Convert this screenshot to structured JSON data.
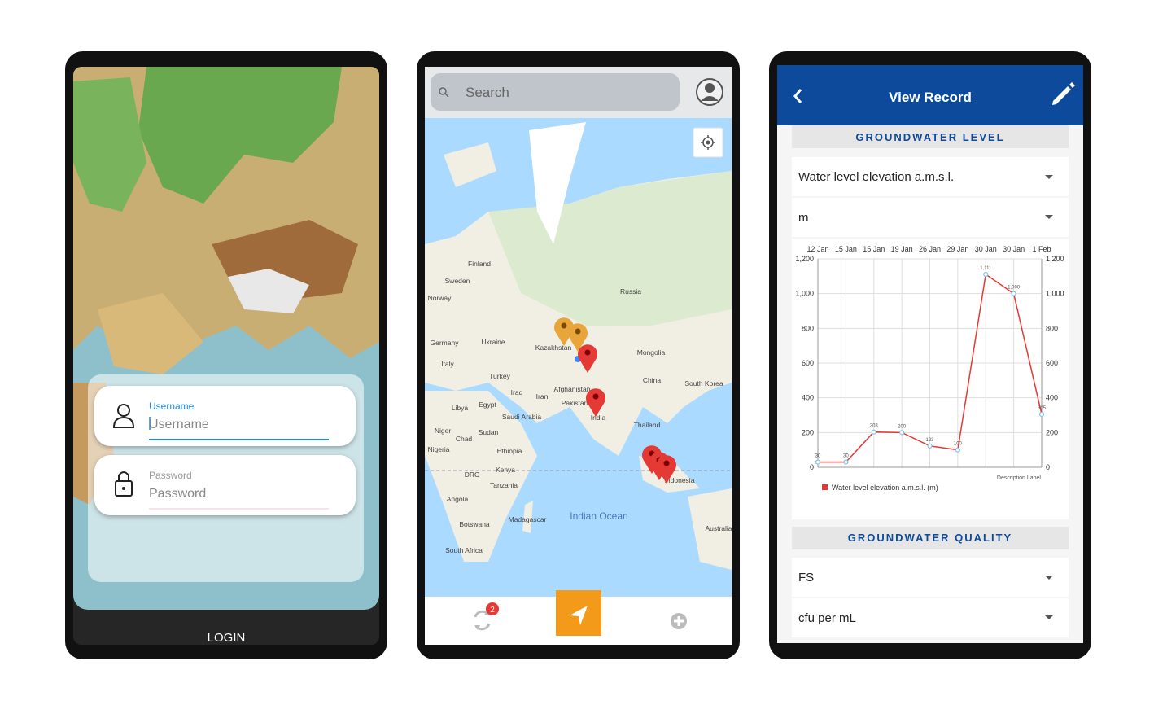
{
  "login": {
    "username_label": "Username",
    "username_placeholder": "Username",
    "password_label": "Password",
    "password_placeholder": "Password",
    "button": "LOGIN"
  },
  "map": {
    "search": "Search",
    "sync_badge": "2",
    "labels": [
      "Finland",
      "Sweden",
      "Norway",
      "Russia",
      "Germany",
      "Ukraine",
      "Italy",
      "Kazakhstan",
      "Mongolia",
      "Turkey",
      "Iraq",
      "Iran",
      "China",
      "South Korea",
      "Afghanistan",
      "Pakistan",
      "India",
      "Libya",
      "Egypt",
      "Saudi Arabia",
      "Thailand",
      "Niger",
      "Chad",
      "Sudan",
      "Nigeria",
      "Ethiopia",
      "DRC",
      "Kenya",
      "Tanzania",
      "Indonesia",
      "Angola",
      "Madagascar",
      "Botswana",
      "South Africa",
      "Indian Ocean",
      "Australia"
    ]
  },
  "record": {
    "title": "View Record",
    "section_1": "GROUNDWATER LEVEL",
    "parameter": "Water level elevation a.m.s.l.",
    "unit": "m",
    "section_2": "GROUNDWATER QUALITY",
    "parameter_2": "FS",
    "unit_2": "cfu per mL"
  },
  "chart_data": {
    "type": "line",
    "categories": [
      "12 Jan",
      "15 Jan",
      "15 Jan",
      "19 Jan",
      "26 Jan",
      "29 Jan",
      "30 Jan",
      "30 Jan",
      "1 Feb"
    ],
    "series": [
      {
        "name": "Water level elevation a.m.s.l. (m)",
        "color": "#e53935",
        "values": [
          30,
          30,
          203,
          200,
          123,
          100,
          1111,
          1000,
          305
        ],
        "value_labels": [
          "30",
          "30",
          "203",
          "200",
          "123",
          "100",
          "1,111",
          "1,000",
          "305"
        ]
      }
    ],
    "ylim": [
      0,
      1200
    ],
    "yticks": [
      0,
      200,
      400,
      600,
      800,
      {
        "value": 1000,
        "label": "1,000"
      },
      {
        "value": 1200,
        "label": "1,200"
      }
    ],
    "grid": true,
    "description": "Description Label"
  }
}
